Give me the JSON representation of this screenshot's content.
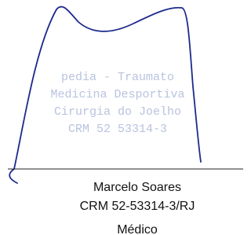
{
  "stamp": {
    "lines": [
      "pedia - Traumato",
      "Medicina Desportiva",
      "Cirurgia do Joelho",
      "CRM 52 53314-3"
    ]
  },
  "signatory": {
    "name": "Marcelo Soares",
    "registration": "CRM 52-53314-3/RJ",
    "role": "Médico"
  }
}
